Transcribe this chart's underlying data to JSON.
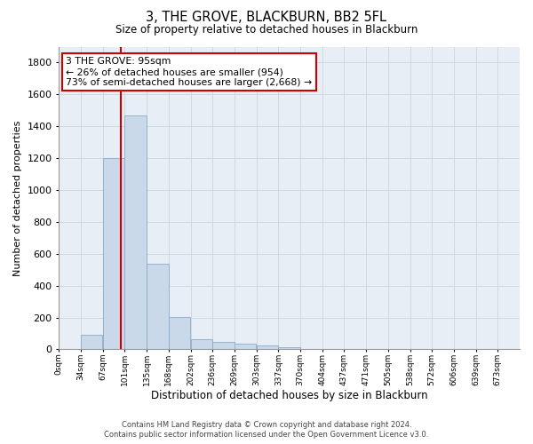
{
  "title": "3, THE GROVE, BLACKBURN, BB2 5FL",
  "subtitle": "Size of property relative to detached houses in Blackburn",
  "xlabel": "Distribution of detached houses by size in Blackburn",
  "ylabel": "Number of detached properties",
  "footer_line1": "Contains HM Land Registry data © Crown copyright and database right 2024.",
  "footer_line2": "Contains public sector information licensed under the Open Government Licence v3.0.",
  "bar_labels": [
    "0sqm",
    "34sqm",
    "67sqm",
    "101sqm",
    "135sqm",
    "168sqm",
    "202sqm",
    "236sqm",
    "269sqm",
    "303sqm",
    "337sqm",
    "370sqm",
    "404sqm",
    "437sqm",
    "471sqm",
    "505sqm",
    "538sqm",
    "572sqm",
    "606sqm",
    "639sqm",
    "673sqm"
  ],
  "bar_values": [
    0,
    90,
    1200,
    1470,
    535,
    205,
    65,
    45,
    35,
    27,
    13,
    0,
    0,
    0,
    0,
    0,
    0,
    0,
    0,
    0,
    0
  ],
  "bar_color": "#c9d9ea",
  "bar_edgecolor": "#8aabcb",
  "grid_color": "#d0d8e0",
  "background_color": "#e8eef5",
  "annotation_text": "3 THE GROVE: 95sqm\n← 26% of detached houses are smaller (954)\n73% of semi-detached houses are larger (2,668) →",
  "annotation_box_color": "#ffffff",
  "annotation_box_edgecolor": "#cc0000",
  "vline_color": "#cc0000",
  "ylim": [
    0,
    1900
  ],
  "yticks": [
    0,
    200,
    400,
    600,
    800,
    1000,
    1200,
    1400,
    1600,
    1800
  ],
  "n_bins": 21,
  "bin_width": 33.5,
  "property_sqm": 95
}
